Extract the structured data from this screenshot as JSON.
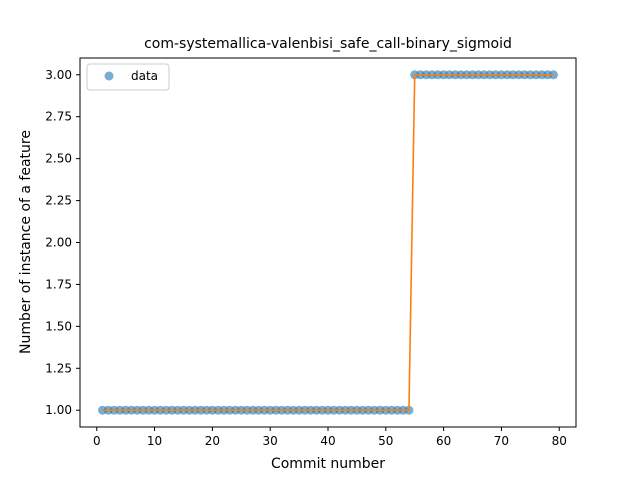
{
  "chart_data": {
    "type": "scatter",
    "title": "com-systemallica-valenbisi_safe_call-binary_sigmoid",
    "xlabel": "Commit number",
    "ylabel": "Number of instance of a feature",
    "xlim": [
      -2.9,
      82.9
    ],
    "ylim": [
      0.9,
      3.1
    ],
    "xticks": [
      0,
      10,
      20,
      30,
      40,
      50,
      60,
      70,
      80
    ],
    "yticks": [
      1.0,
      1.25,
      1.5,
      1.75,
      2.0,
      2.25,
      2.5,
      2.75,
      3.0
    ],
    "grid": false,
    "legend_position": "top-left",
    "series": [
      {
        "name": "data",
        "kind": "scatter",
        "color": "#1f77b4",
        "x": [
          1,
          2,
          3,
          4,
          5,
          6,
          7,
          8,
          9,
          10,
          11,
          12,
          13,
          14,
          15,
          16,
          17,
          18,
          19,
          20,
          21,
          22,
          23,
          24,
          25,
          26,
          27,
          28,
          29,
          30,
          31,
          32,
          33,
          34,
          35,
          36,
          37,
          38,
          39,
          40,
          41,
          42,
          43,
          44,
          45,
          46,
          47,
          48,
          49,
          50,
          51,
          52,
          53,
          54,
          55,
          56,
          57,
          58,
          59,
          60,
          61,
          62,
          63,
          64,
          65,
          66,
          67,
          68,
          69,
          70,
          71,
          72,
          73,
          74,
          75,
          76,
          77,
          78,
          79
        ],
        "y": [
          1,
          1,
          1,
          1,
          1,
          1,
          1,
          1,
          1,
          1,
          1,
          1,
          1,
          1,
          1,
          1,
          1,
          1,
          1,
          1,
          1,
          1,
          1,
          1,
          1,
          1,
          1,
          1,
          1,
          1,
          1,
          1,
          1,
          1,
          1,
          1,
          1,
          1,
          1,
          1,
          1,
          1,
          1,
          1,
          1,
          1,
          1,
          1,
          1,
          1,
          1,
          1,
          1,
          1,
          3,
          3,
          3,
          3,
          3,
          3,
          3,
          3,
          3,
          3,
          3,
          3,
          3,
          3,
          3,
          3,
          3,
          3,
          3,
          3,
          3,
          3,
          3,
          3,
          3
        ]
      },
      {
        "kind": "line",
        "color": "#ff7f0e",
        "x": [
          1,
          54,
          55,
          79
        ],
        "y": [
          1,
          1,
          3,
          3
        ]
      }
    ]
  }
}
